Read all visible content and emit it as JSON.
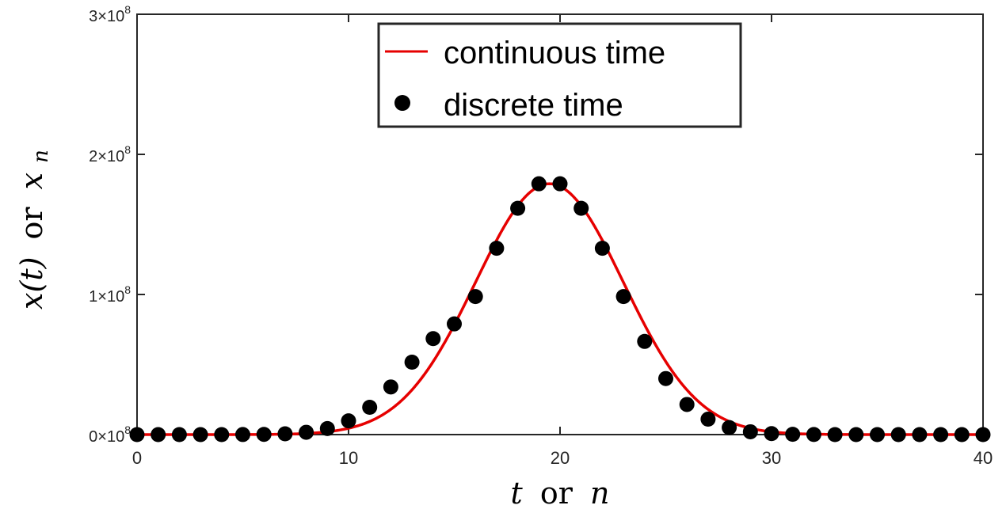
{
  "chart_data": {
    "type": "line",
    "xlabel_var1": "t",
    "xlabel_word": "or",
    "xlabel_var2": "n",
    "ylabel_var1": "x(t)",
    "ylabel_word": "or",
    "ylabel_var2": "x",
    "ylabel_sub": "n",
    "xlim": [
      0,
      40
    ],
    "ylim": [
      0,
      300000000
    ],
    "xticks": [
      "0",
      "10",
      "20",
      "30",
      "40"
    ],
    "yticks": [
      {
        "mantissa": "0",
        "base": "×10",
        "exp": "8"
      },
      {
        "mantissa": "1",
        "base": "×10",
        "exp": "8"
      },
      {
        "mantissa": "2",
        "base": "×10",
        "exp": "8"
      },
      {
        "mantissa": "3",
        "base": "×10",
        "exp": "8"
      }
    ],
    "grid": false,
    "legend_position": "top-center",
    "series": [
      {
        "name": "continuous time",
        "kind": "line",
        "color": "#e60000",
        "peak_x": 19.5,
        "peak_y": 179000000,
        "sigma": 3.5
      },
      {
        "name": "discrete time",
        "kind": "markers",
        "color": "#000000",
        "x": [
          0,
          1,
          2,
          3,
          4,
          5,
          6,
          7,
          8,
          9,
          10,
          11,
          12,
          13,
          14,
          15,
          16,
          17,
          18,
          19,
          20,
          21,
          22,
          23,
          24,
          25,
          26,
          27,
          28,
          29,
          30,
          31,
          32,
          33,
          34,
          35,
          36,
          37,
          38,
          39,
          40
        ],
        "y": [
          0,
          0,
          0,
          0,
          10000,
          40000,
          160000,
          550000,
          1650000,
          4300000,
          9800000,
          19500000,
          34000000,
          51700000,
          68500000,
          79000000,
          98500000,
          133000000,
          161500000,
          179000000,
          179000000,
          161500000,
          133000000,
          98500000,
          66500000,
          40000000,
          21500000,
          11000000,
          5000000,
          2000000,
          700000,
          220000,
          60000,
          10000,
          0,
          0,
          0,
          0,
          0,
          0,
          0
        ]
      }
    ]
  }
}
